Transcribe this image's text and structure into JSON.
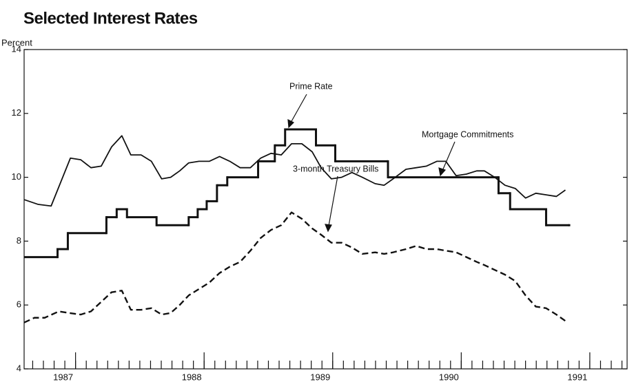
{
  "chart_data": {
    "type": "line",
    "title": "Selected Interest Rates",
    "y_label": "Percent",
    "xlim": [
      1986.6,
      1991.29
    ],
    "xticks": [
      1987,
      1988,
      1989,
      1990,
      1991
    ],
    "ylim": [
      4,
      14
    ],
    "yticks": [
      4,
      6,
      8,
      10,
      12,
      14
    ],
    "annotations": [
      "Prime Rate",
      "Mortgage Commitments",
      "3-month Treasury Bills"
    ],
    "series": [
      {
        "name": "Mortgage Commitments",
        "color": "#111111",
        "style": "solid",
        "x": [
          1986.6,
          1986.71,
          1986.81,
          1986.96,
          1987.04,
          1987.12,
          1987.2,
          1987.28,
          1987.36,
          1987.43,
          1987.51,
          1987.59,
          1987.67,
          1987.74,
          1987.81,
          1987.88,
          1987.96,
          1988.04,
          1988.12,
          1988.2,
          1988.28,
          1988.36,
          1988.44,
          1988.52,
          1988.6,
          1988.68,
          1988.76,
          1988.84,
          1988.91,
          1988.99,
          1989.07,
          1989.15,
          1989.23,
          1989.33,
          1989.4,
          1989.47,
          1989.57,
          1989.65,
          1989.73,
          1989.81,
          1989.88,
          1989.96,
          1990.04,
          1990.12,
          1990.18,
          1990.26,
          1990.34,
          1990.42,
          1990.5,
          1990.58,
          1990.66,
          1990.74,
          1990.81
        ],
        "values": [
          9.3,
          9.15,
          9.1,
          10.6,
          10.55,
          10.3,
          10.35,
          10.95,
          11.3,
          10.7,
          10.7,
          10.5,
          9.95,
          10.0,
          10.2,
          10.45,
          10.5,
          10.5,
          10.65,
          10.5,
          10.3,
          10.3,
          10.6,
          10.75,
          10.7,
          11.05,
          11.05,
          10.8,
          10.3,
          9.95,
          10.0,
          10.15,
          10.0,
          9.8,
          9.75,
          9.95,
          10.25,
          10.3,
          10.35,
          10.5,
          10.5,
          10.05,
          10.1,
          10.2,
          10.2,
          10.0,
          9.75,
          9.65,
          9.35,
          9.5,
          9.45,
          9.4,
          9.6
        ]
      },
      {
        "name": "Prime Rate",
        "color": "#111111",
        "style": "step",
        "x": [
          1986.6,
          1986.86,
          1986.94,
          1987.24,
          1987.32,
          1987.4,
          1987.63,
          1987.88,
          1987.95,
          1988.02,
          1988.1,
          1988.18,
          1988.42,
          1988.55,
          1988.63,
          1988.87,
          1989.02,
          1989.43,
          1990.29,
          1990.38,
          1990.66,
          1990.84
        ],
        "values": [
          7.5,
          7.75,
          8.25,
          8.75,
          9.0,
          8.75,
          8.5,
          8.75,
          9.0,
          9.25,
          9.75,
          10.0,
          10.5,
          11.0,
          11.5,
          11.0,
          10.5,
          10.0,
          9.5,
          9.0,
          8.5,
          8.5
        ]
      },
      {
        "name": "3-month Treasury Bills",
        "color": "#111111",
        "style": "dashed",
        "x": [
          1986.6,
          1986.68,
          1986.76,
          1986.87,
          1986.95,
          1987.04,
          1987.12,
          1987.2,
          1987.28,
          1987.36,
          1987.43,
          1987.51,
          1987.59,
          1987.67,
          1987.74,
          1987.81,
          1987.88,
          1987.96,
          1988.04,
          1988.12,
          1988.2,
          1988.28,
          1988.36,
          1988.44,
          1988.52,
          1988.6,
          1988.68,
          1988.76,
          1988.84,
          1988.91,
          1988.99,
          1989.07,
          1989.15,
          1989.23,
          1989.33,
          1989.4,
          1989.47,
          1989.57,
          1989.65,
          1989.73,
          1989.81,
          1989.88,
          1989.96,
          1990.04,
          1990.12,
          1990.18,
          1990.26,
          1990.34,
          1990.42,
          1990.5,
          1990.58,
          1990.66,
          1990.74,
          1990.81
        ],
        "values": [
          5.45,
          5.6,
          5.6,
          5.8,
          5.75,
          5.7,
          5.8,
          6.1,
          6.4,
          6.45,
          5.85,
          5.85,
          5.9,
          5.7,
          5.75,
          6.0,
          6.3,
          6.5,
          6.7,
          7.0,
          7.2,
          7.35,
          7.7,
          8.1,
          8.35,
          8.5,
          8.9,
          8.7,
          8.4,
          8.2,
          7.95,
          7.95,
          7.8,
          7.6,
          7.65,
          7.6,
          7.65,
          7.75,
          7.85,
          7.75,
          7.75,
          7.7,
          7.65,
          7.5,
          7.35,
          7.25,
          7.1,
          6.95,
          6.75,
          6.3,
          5.95,
          5.9,
          5.7,
          5.5
        ]
      }
    ]
  }
}
